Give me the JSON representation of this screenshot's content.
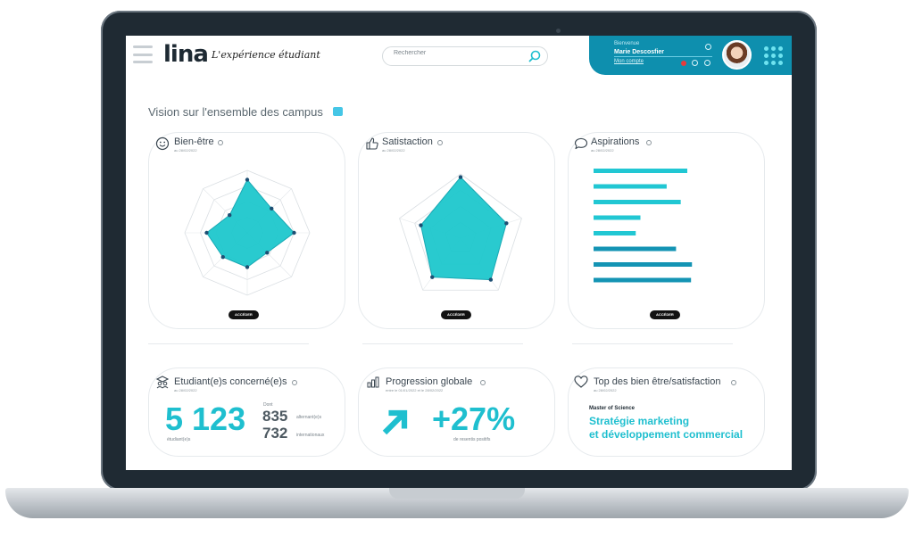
{
  "app": {
    "logo": "lina",
    "tagline": "L'expérience étudiant"
  },
  "search": {
    "placeholder": "Rechercher"
  },
  "user": {
    "welcome": "Bienvenue",
    "name": "Marie Descosfier",
    "link": "Mon compte"
  },
  "page": {
    "title": "Vision sur l'ensemble des campus"
  },
  "cards": {
    "bienetre": {
      "title": "Bien-être",
      "date": "au 28/02/2022",
      "button": "ACCÉDER"
    },
    "satisfaction": {
      "title": "Satistaction",
      "date": "au 28/02/2022",
      "button": "ACCÉDER"
    },
    "aspirations": {
      "title": "Aspirations",
      "date": "au 28/02/2022",
      "button": "ACCÉDER"
    },
    "etudiants": {
      "title": "Etudiant(e)s concerné(e)s",
      "date": "au 28/02/2022",
      "total": "5 123",
      "total_label": "étudiant(e)s",
      "dont": "Dont",
      "alternants": "835",
      "alternants_label": "alternant(e)s",
      "internationaux": "732",
      "internationaux_label": "internationaux"
    },
    "progression": {
      "title": "Progression globale",
      "date": "entre le 01/01/2022 et le 28/02/2022",
      "value": "+27%",
      "label": "de resentis positifs"
    },
    "top": {
      "title": "Top des bien être/satisfaction",
      "date": "au 28/02/2022",
      "program_kind": "Master of Science",
      "program_line1": "Stratégie marketing",
      "program_line2": "et développement commercial"
    }
  },
  "colors": {
    "accent": "#1fbfcf",
    "panel": "#0e8fae",
    "bar": "#17a3bd",
    "radar_fill": "#1ec7cc"
  },
  "chart_data": [
    {
      "type": "radar",
      "name": "bienetre",
      "max": 1,
      "values": [
        0.85,
        0.55,
        0.75,
        0.45,
        0.55,
        0.55,
        0.65,
        0.4
      ]
    },
    {
      "type": "radar",
      "name": "satisfaction",
      "max": 1,
      "values": [
        0.95,
        0.75,
        0.8,
        0.75,
        0.65
      ]
    },
    {
      "type": "bar",
      "orientation": "horizontal",
      "name": "aspirations",
      "values": [
        1.0,
        0.78,
        0.93,
        0.5,
        0.45,
        0.88,
        1.05,
        1.04
      ]
    }
  ]
}
